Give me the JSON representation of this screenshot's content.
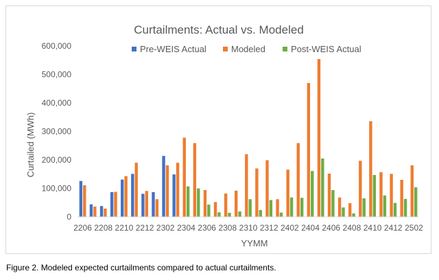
{
  "caption": "Figure 2.  Modeled expected curtailments compared to actual curtailments.",
  "chart_data": {
    "type": "bar",
    "title": "Curtailments: Actual vs. Modeled",
    "xlabel": "YYMM",
    "ylabel": "Curtailed (MWh)",
    "ylim": [
      0,
      600000
    ],
    "yticks": [
      "0",
      "100,000",
      "200,000",
      "300,000",
      "400,000",
      "500,000",
      "600,000"
    ],
    "grid": false,
    "legend_position": "top",
    "categories": [
      "2206",
      "2207",
      "2208",
      "2209",
      "2210",
      "2211",
      "2212",
      "2301",
      "2302",
      "2303",
      "2304",
      "2305",
      "2306",
      "2307",
      "2308",
      "2309",
      "2310",
      "2311",
      "2312",
      "2401",
      "2402",
      "2403",
      "2404",
      "2405",
      "2406",
      "2407",
      "2408",
      "2409",
      "2410",
      "2411",
      "2412",
      "2501",
      "2502"
    ],
    "tick_labels": [
      "2206",
      "2208",
      "2210",
      "2212",
      "2302",
      "2304",
      "2306",
      "2308",
      "2310",
      "2312",
      "2402",
      "2404",
      "2406",
      "2408",
      "2410",
      "2412",
      "2502"
    ],
    "series": [
      {
        "name": "Pre-WEIS Actual",
        "color": "#4472c4",
        "values": [
          126000,
          44000,
          38000,
          87000,
          131000,
          151000,
          81000,
          87000,
          214000,
          149000,
          null,
          null,
          null,
          null,
          null,
          null,
          null,
          null,
          null,
          null,
          null,
          null,
          null,
          null,
          null,
          null,
          null,
          null,
          null,
          null,
          null,
          null,
          null
        ]
      },
      {
        "name": "Modeled",
        "color": "#ed7d31",
        "values": [
          111000,
          36000,
          29000,
          88000,
          143000,
          190000,
          91000,
          62000,
          181000,
          190000,
          278000,
          259000,
          94000,
          52000,
          82000,
          92000,
          220000,
          170000,
          199000,
          62000,
          166000,
          259000,
          470000,
          554000,
          152000,
          68000,
          48000,
          197000,
          336000,
          157000,
          151000,
          130000,
          181000
        ]
      },
      {
        "name": "Post-WEIS Actual",
        "color": "#70ad47",
        "values": [
          null,
          null,
          null,
          null,
          null,
          null,
          null,
          null,
          null,
          null,
          107000,
          100000,
          43000,
          16000,
          14000,
          19000,
          62000,
          24000,
          59000,
          15000,
          68000,
          67000,
          161000,
          205000,
          94000,
          33000,
          12000,
          65000,
          147000,
          75000,
          49000,
          63000,
          104000
        ]
      }
    ]
  }
}
